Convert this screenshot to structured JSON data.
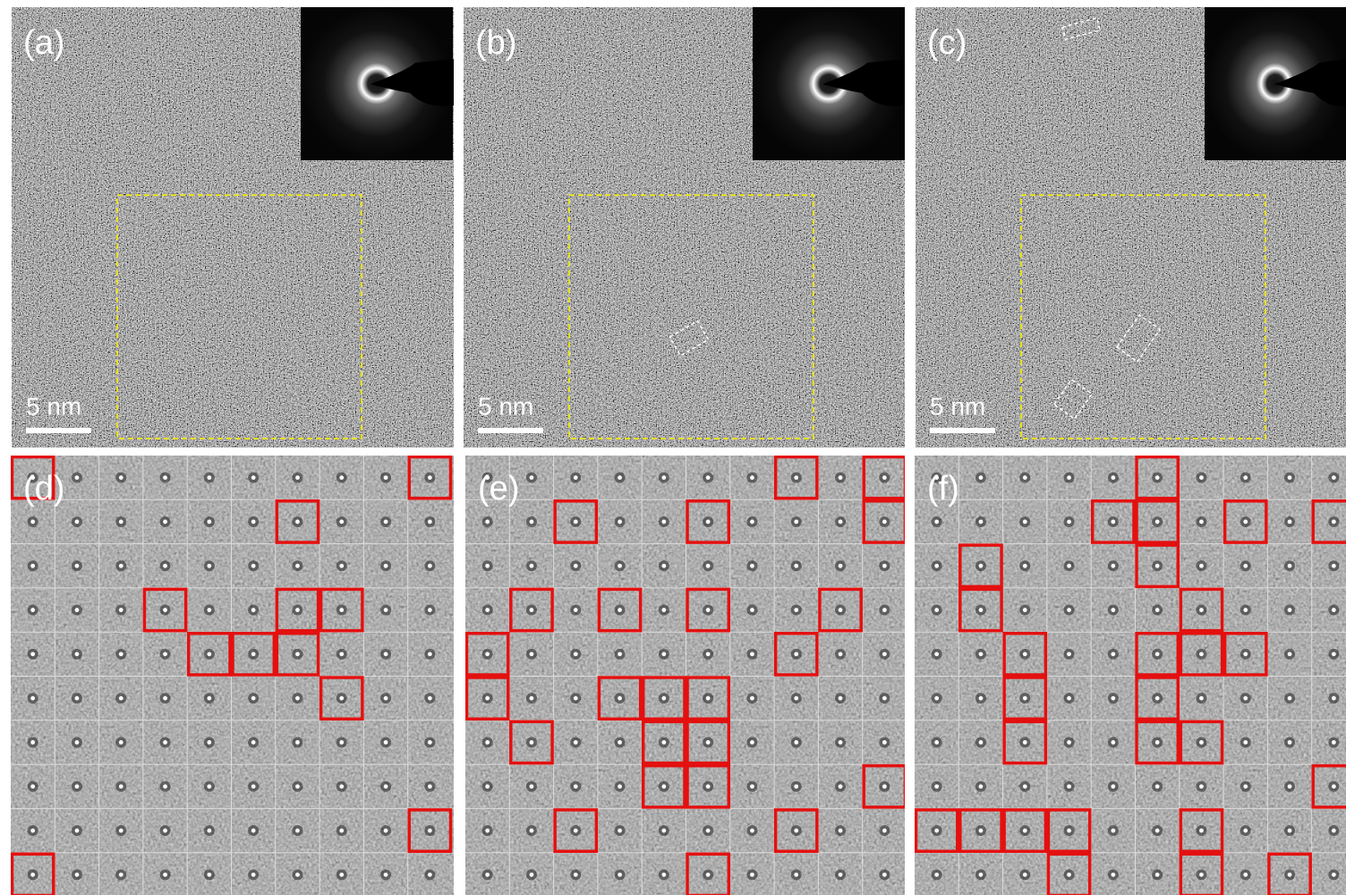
{
  "top_panels": [
    {
      "label": "(a)",
      "scale_bar": "5 nm"
    },
    {
      "label": "(b)",
      "scale_bar": "5 nm"
    },
    {
      "label": "(c)",
      "scale_bar": "5 nm"
    }
  ],
  "bottom_panels": [
    {
      "label": "(d)"
    },
    {
      "label": "(e)"
    },
    {
      "label": "(f)"
    }
  ]
}
